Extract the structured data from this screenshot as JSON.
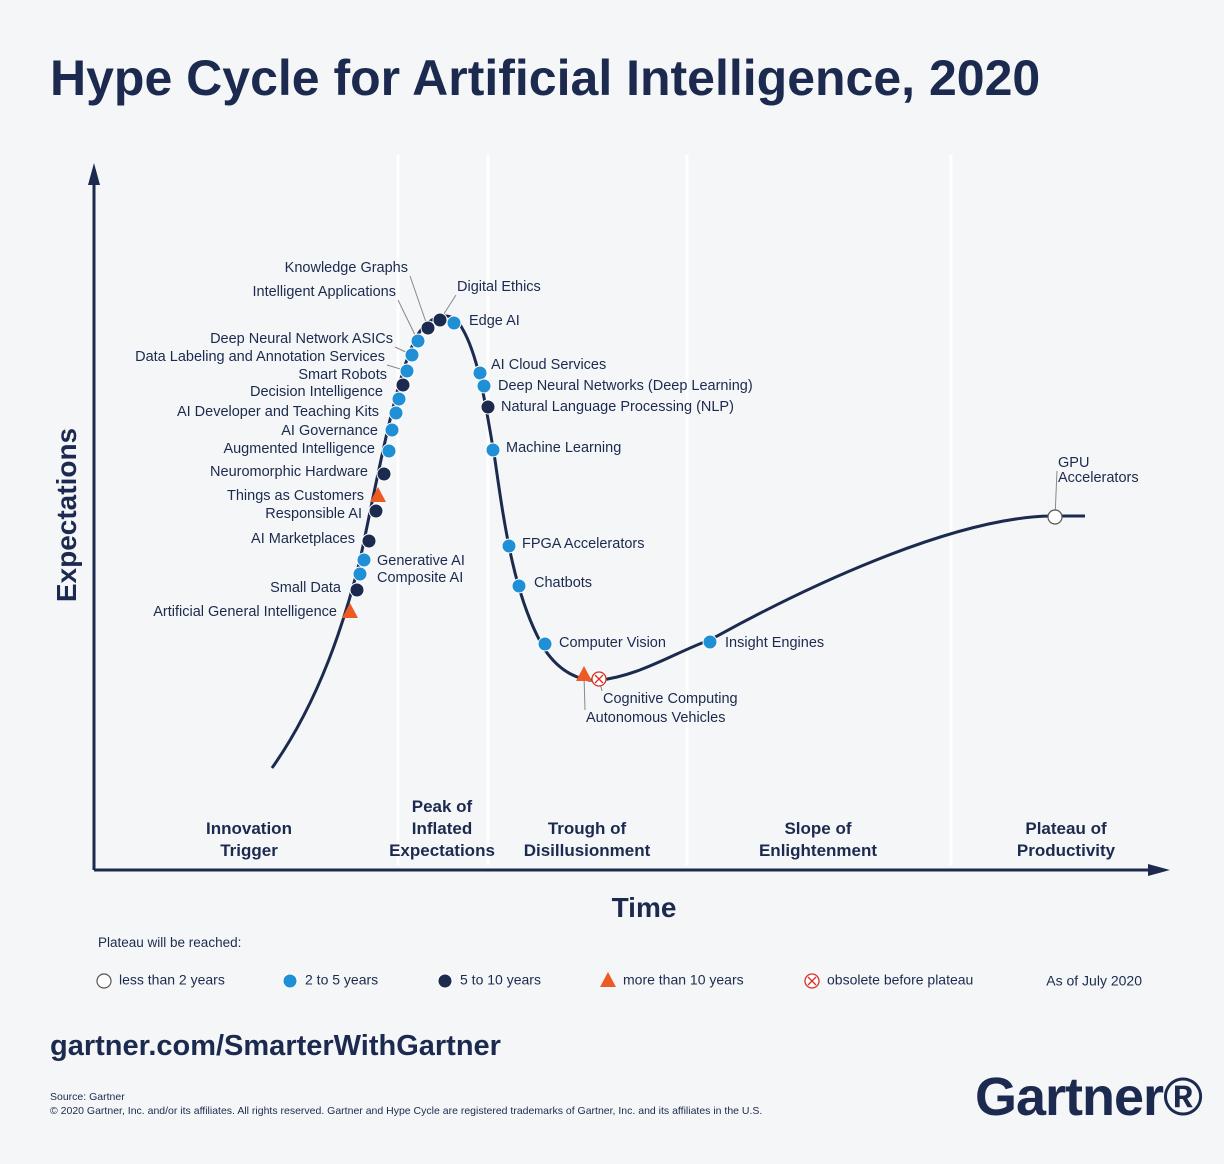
{
  "header": {
    "title": "Hype Cycle for Artificial Intelligence, 2020"
  },
  "axes": {
    "y_label": "Expectations",
    "x_label": "Time"
  },
  "phases": [
    {
      "lines": [
        "Innovation",
        "Trigger"
      ]
    },
    {
      "lines": [
        "Peak of",
        "Inflated",
        "Expectations"
      ]
    },
    {
      "lines": [
        "Trough of",
        "Disillusionment"
      ]
    },
    {
      "lines": [
        "Slope of",
        "Enlightenment"
      ]
    },
    {
      "lines": [
        "Plateau of",
        "Productivity"
      ]
    }
  ],
  "nodes": [
    {
      "label": "Knowledge Graphs",
      "symbol": "dark"
    },
    {
      "label": "Digital Ethics",
      "symbol": "dark"
    },
    {
      "label": "Edge AI",
      "symbol": "light"
    },
    {
      "label": "Intelligent Applications",
      "symbol": "light"
    },
    {
      "label": "Deep Neural Network ASICs",
      "symbol": "light"
    },
    {
      "label": "Data Labeling and Annotation Services",
      "symbol": "light"
    },
    {
      "label": "Smart Robots",
      "symbol": "dark"
    },
    {
      "label": "Decision Intelligence",
      "symbol": "light"
    },
    {
      "label": "AI Developer and Teaching Kits",
      "symbol": "light"
    },
    {
      "label": "AI Governance",
      "symbol": "light"
    },
    {
      "label": "Augmented Intelligence",
      "symbol": "light"
    },
    {
      "label": "Neuromorphic Hardware",
      "symbol": "dark"
    },
    {
      "label": "Things as Customers",
      "symbol": "triangle"
    },
    {
      "label": "Responsible AI",
      "symbol": "dark"
    },
    {
      "label": "AI Marketplaces",
      "symbol": "dark"
    },
    {
      "label": "Generative AI",
      "symbol": "light"
    },
    {
      "label": "Composite AI",
      "symbol": "light"
    },
    {
      "label": "Small Data",
      "symbol": "dark"
    },
    {
      "label": "Artificial General Intelligence",
      "symbol": "triangle"
    },
    {
      "label": "AI Cloud Services",
      "symbol": "light"
    },
    {
      "label": "Deep Neural Networks (Deep Learning)",
      "symbol": "light"
    },
    {
      "label": "Natural Language Processing (NLP)",
      "symbol": "dark"
    },
    {
      "label": "Machine Learning",
      "symbol": "light"
    },
    {
      "label": "FPGA Accelerators",
      "symbol": "light"
    },
    {
      "label": "Chatbots",
      "symbol": "light"
    },
    {
      "label": "Computer Vision",
      "symbol": "light"
    },
    {
      "label": "Autonomous Vehicles",
      "symbol": "triangle"
    },
    {
      "label": "Cognitive Computing",
      "symbol": "obsolete"
    },
    {
      "label": "Insight Engines",
      "symbol": "light"
    },
    {
      "label": [
        "GPU",
        "Accelerators"
      ],
      "symbol": "open"
    }
  ],
  "legend": {
    "title": "Plateau will be reached:",
    "items": [
      {
        "label": "less than 2 years",
        "symbol": "open"
      },
      {
        "label": "2 to 5 years",
        "symbol": "light"
      },
      {
        "label": "5 to 10 years",
        "symbol": "dark"
      },
      {
        "label": "more than 10 years",
        "symbol": "triangle"
      },
      {
        "label": "obsolete before plateau",
        "symbol": "obsolete"
      }
    ],
    "as_of": "As of July 2020"
  },
  "footer": {
    "url": "gartner.com/SmarterWithGartner",
    "source": "Source: Gartner",
    "copyright": "© 2020 Gartner, Inc. and/or its affiliates. All rights reserved. Gartner and Hype Cycle are registered trademarks of Gartner, Inc. and its affiliates in the U.S.",
    "logo": "Gartner®"
  }
}
